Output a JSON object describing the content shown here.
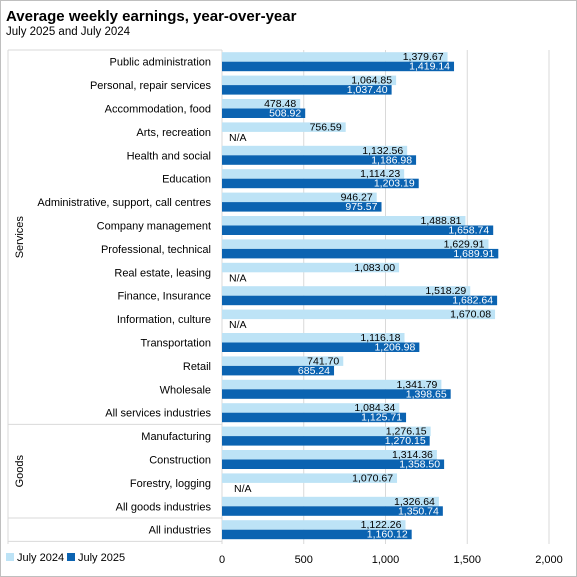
{
  "title": "Average weekly earnings, year-over-year",
  "subtitle": "July 2025 and July 2024",
  "colors": {
    "july_2024": "#bde3f6",
    "july_2025": "#0b63b1",
    "grid": "#d9d9d9",
    "axis_text": "#000000"
  },
  "chart_data": {
    "type": "bar",
    "orientation": "horizontal",
    "title": "Average weekly earnings, year-over-year",
    "subtitle": "July 2025 and July 2024",
    "xlim": [
      0,
      2000
    ],
    "xticks": [
      0,
      500,
      1000,
      1500,
      2000
    ],
    "xtick_labels": [
      "0",
      "500",
      "1,000",
      "1,500",
      "2,000"
    ],
    "grid": true,
    "legend_position": "bottom-left",
    "groups": [
      {
        "name": "Services",
        "start": 0,
        "end": 16
      },
      {
        "name": "Goods",
        "start": 16,
        "end": 20
      },
      {
        "name": "",
        "start": 20,
        "end": 21
      }
    ],
    "categories": [
      "Public administration",
      "Personal, repair services",
      "Accommodation, food",
      "Arts, recreation",
      "Health and social",
      "Education",
      "Administrative, support, call centres",
      "Company management",
      "Professional, technical",
      "Real estate, leasing",
      "Finance, Insurance",
      "Information, culture",
      "Transportation",
      "Retail",
      "Wholesale",
      "All services industries",
      "Manufacturing",
      "Construction",
      "Forestry, logging",
      "All goods industries",
      "All industries"
    ],
    "series": [
      {
        "name": "July 2024",
        "color": "#bde3f6",
        "values": [
          1379.67,
          1064.85,
          478.48,
          756.59,
          1132.56,
          1114.23,
          946.27,
          1488.81,
          1629.91,
          1083.0,
          1518.29,
          1670.08,
          1116.18,
          741.7,
          1341.79,
          1084.34,
          1276.15,
          1314.36,
          1070.67,
          1326.64,
          1122.26
        ],
        "labels": [
          "1,379.67",
          "1,064.85",
          "478.48",
          "756.59",
          "1,132.56",
          "1,114.23",
          "946.27",
          "1,488.81",
          "1,629.91",
          "1,083.00",
          "1,518.29",
          "1,670.08",
          "1,116.18",
          "741.70",
          "1,341.79",
          "1,084.34",
          "1,276.15",
          "1,314.36",
          "1,070.67",
          "1,326.64",
          "1,122.26"
        ]
      },
      {
        "name": "July 2025",
        "color": "#0b63b1",
        "values": [
          1419.14,
          1037.4,
          508.92,
          null,
          1186.98,
          1203.19,
          975.57,
          1658.74,
          1689.91,
          null,
          1682.64,
          null,
          1206.98,
          685.24,
          1398.65,
          1125.71,
          1270.15,
          1358.5,
          null,
          1350.74,
          1160.12
        ],
        "labels": [
          "1,419.14",
          "1,037.40",
          "508.92",
          "N/A",
          "1,186.98",
          "1,203.19",
          "975.57",
          "1,658.74",
          "1,689.91",
          "N/A",
          "1,682.64",
          "N/A",
          "1,206.98",
          "685.24",
          "1,398.65",
          "1,125.71",
          "1,270.15",
          "1,358.50",
          "N/A",
          "1,350.74",
          "1,160.12"
        ]
      }
    ]
  }
}
